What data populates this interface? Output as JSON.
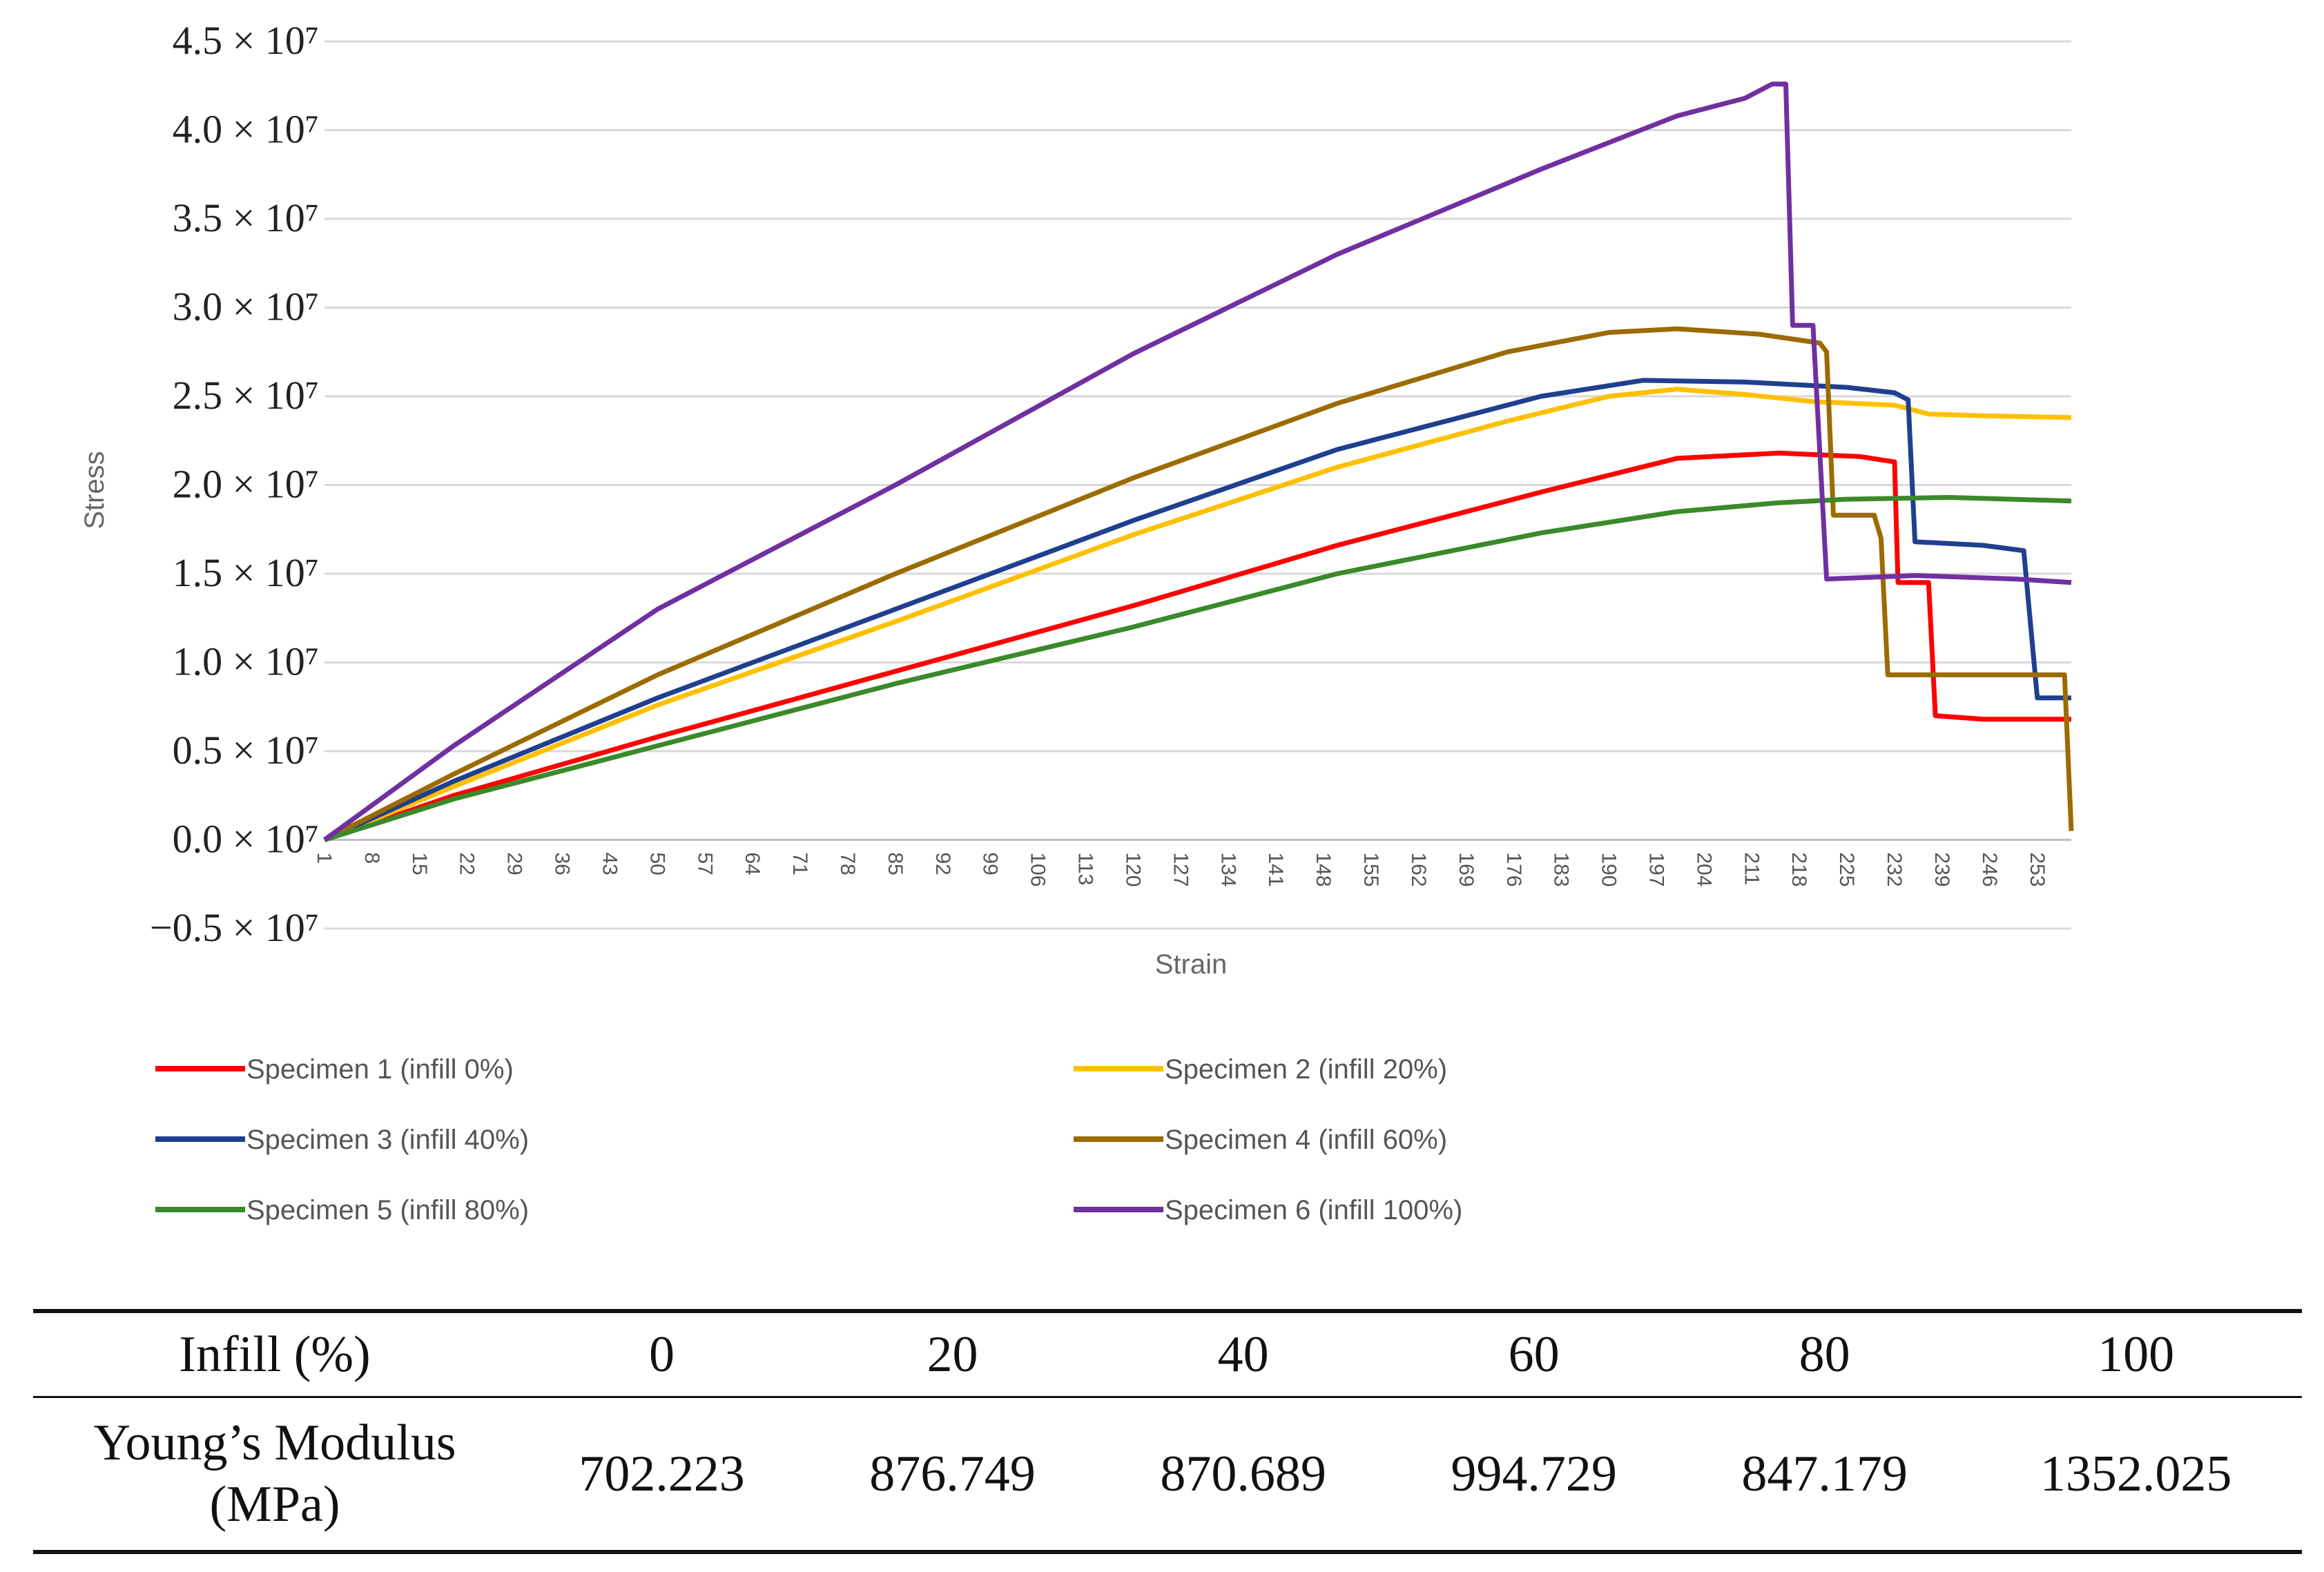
{
  "chart_data": {
    "type": "line",
    "title": "",
    "xlabel": "Strain",
    "ylabel": "Stress",
    "ylim": [
      -5000000,
      45000000
    ],
    "y_ticks": [
      {
        "value": 45000000,
        "label": "4.5 × 10⁷"
      },
      {
        "value": 40000000,
        "label": "4.0 × 10⁷"
      },
      {
        "value": 35000000,
        "label": "3.5 × 10⁷"
      },
      {
        "value": 30000000,
        "label": "3.0 × 10⁷"
      },
      {
        "value": 25000000,
        "label": "2.5 × 10⁷"
      },
      {
        "value": 20000000,
        "label": "2.0 × 10⁷"
      },
      {
        "value": 15000000,
        "label": "1.5 × 10⁷"
      },
      {
        "value": 10000000,
        "label": "1.0 × 10⁷"
      },
      {
        "value": 5000000,
        "label": "0.5 × 10⁷"
      },
      {
        "value": 0,
        "label": "0.0 × 10⁷"
      },
      {
        "value": -5000000,
        "label": "−0.5 × 10⁷"
      }
    ],
    "x_ticks": [
      "1",
      "8",
      "15",
      "22",
      "29",
      "36",
      "43",
      "50",
      "57",
      "64",
      "71",
      "78",
      "85",
      "92",
      "99",
      "106",
      "113",
      "120",
      "127",
      "134",
      "141",
      "148",
      "155",
      "162",
      "169",
      "176",
      "183",
      "190",
      "197",
      "204",
      "211",
      "218",
      "225",
      "232",
      "239",
      "246",
      "253"
    ],
    "x_range": [
      1,
      258
    ],
    "series": [
      {
        "name": "Specimen 1 (infill 0%)",
        "color": "#ff0000",
        "points": [
          [
            1,
            0
          ],
          [
            20,
            2500000
          ],
          [
            50,
            5800000
          ],
          [
            85,
            9500000
          ],
          [
            120,
            13200000
          ],
          [
            150,
            16600000
          ],
          [
            180,
            19600000
          ],
          [
            200,
            21500000
          ],
          [
            215,
            21800000
          ],
          [
            227,
            21600000
          ],
          [
            232,
            21300000
          ],
          [
            232.5,
            14500000
          ],
          [
            237,
            14500000
          ],
          [
            238,
            7000000
          ],
          [
            245,
            6800000
          ],
          [
            258,
            6800000
          ]
        ]
      },
      {
        "name": "Specimen 2 (infill 20%)",
        "color": "#ffc000",
        "points": [
          [
            1,
            0
          ],
          [
            20,
            3000000
          ],
          [
            50,
            7600000
          ],
          [
            85,
            12300000
          ],
          [
            120,
            17200000
          ],
          [
            150,
            21000000
          ],
          [
            175,
            23600000
          ],
          [
            190,
            25000000
          ],
          [
            200,
            25400000
          ],
          [
            210,
            25100000
          ],
          [
            220,
            24700000
          ],
          [
            232,
            24500000
          ],
          [
            237,
            24000000
          ],
          [
            245,
            23900000
          ],
          [
            258,
            23800000
          ]
        ]
      },
      {
        "name": "Specimen 3 (infill 40%)",
        "color": "#1f3f8f",
        "points": [
          [
            1,
            0
          ],
          [
            20,
            3300000
          ],
          [
            50,
            8000000
          ],
          [
            85,
            13000000
          ],
          [
            120,
            18000000
          ],
          [
            150,
            22000000
          ],
          [
            180,
            25000000
          ],
          [
            195,
            25900000
          ],
          [
            210,
            25800000
          ],
          [
            225,
            25500000
          ],
          [
            232,
            25200000
          ],
          [
            234,
            24800000
          ],
          [
            235,
            16800000
          ],
          [
            245,
            16600000
          ],
          [
            251,
            16300000
          ],
          [
            253,
            8000000
          ],
          [
            258,
            8000000
          ]
        ]
      },
      {
        "name": "Specimen 4 (infill 60%)",
        "color": "#9c6b00",
        "points": [
          [
            1,
            0
          ],
          [
            20,
            3700000
          ],
          [
            50,
            9300000
          ],
          [
            85,
            15000000
          ],
          [
            120,
            20400000
          ],
          [
            150,
            24600000
          ],
          [
            175,
            27500000
          ],
          [
            190,
            28600000
          ],
          [
            200,
            28800000
          ],
          [
            212,
            28500000
          ],
          [
            221,
            28000000
          ],
          [
            222,
            27500000
          ],
          [
            223,
            18300000
          ],
          [
            229,
            18300000
          ],
          [
            230,
            17000000
          ],
          [
            231,
            9300000
          ],
          [
            245,
            9300000
          ],
          [
            257,
            9300000
          ],
          [
            258,
            500000
          ]
        ]
      },
      {
        "name": "Specimen 5 (infill 80%)",
        "color": "#3a8a2a",
        "points": [
          [
            1,
            0
          ],
          [
            20,
            2300000
          ],
          [
            50,
            5300000
          ],
          [
            85,
            8800000
          ],
          [
            120,
            12000000
          ],
          [
            150,
            15000000
          ],
          [
            180,
            17300000
          ],
          [
            200,
            18500000
          ],
          [
            215,
            19000000
          ],
          [
            225,
            19200000
          ],
          [
            240,
            19300000
          ],
          [
            258,
            19100000
          ]
        ]
      },
      {
        "name": "Specimen 6 (infill 100%)",
        "color": "#7030a0",
        "points": [
          [
            1,
            0
          ],
          [
            20,
            5300000
          ],
          [
            50,
            13000000
          ],
          [
            85,
            20000000
          ],
          [
            120,
            27400000
          ],
          [
            150,
            33000000
          ],
          [
            180,
            37800000
          ],
          [
            200,
            40800000
          ],
          [
            210,
            41800000
          ],
          [
            214,
            42600000
          ],
          [
            216,
            42600000
          ],
          [
            217,
            29000000
          ],
          [
            220,
            29000000
          ],
          [
            222,
            14700000
          ],
          [
            235,
            14900000
          ],
          [
            250,
            14700000
          ],
          [
            258,
            14500000
          ]
        ]
      }
    ]
  },
  "table": {
    "header_label": "Infill (%)",
    "columns": [
      "0",
      "20",
      "40",
      "60",
      "80",
      "100"
    ],
    "row_label_line1": "Young’s Modulus",
    "row_label_line2": "(MPa)",
    "values": [
      "702.223",
      "876.749",
      "870.689",
      "994.729",
      "847.179",
      "1352.025"
    ]
  }
}
